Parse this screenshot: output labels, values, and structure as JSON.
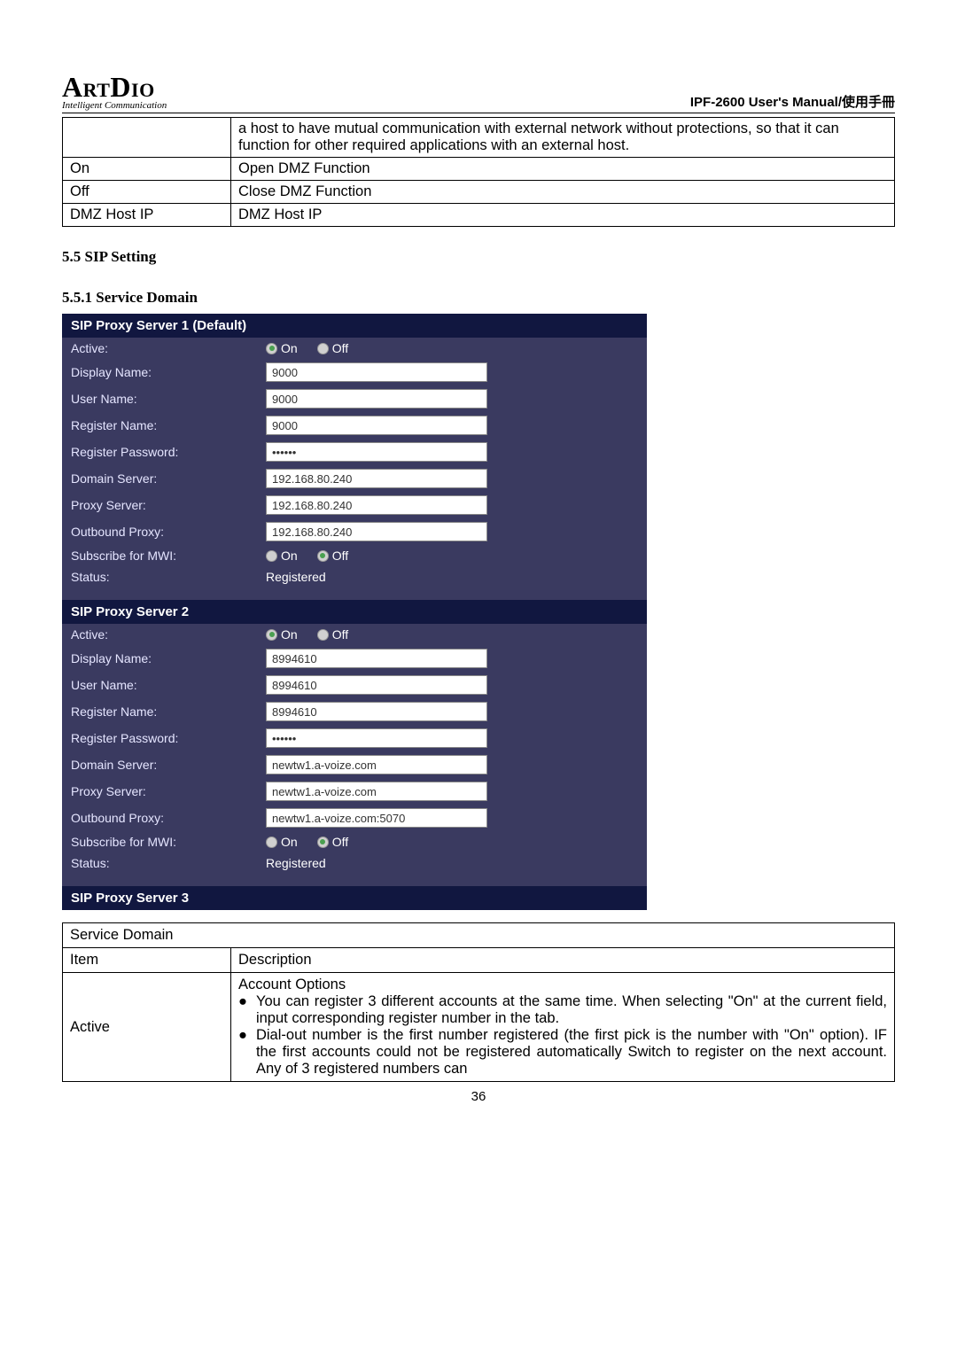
{
  "header": {
    "logo_main": "ArtDio",
    "logo_sub": "Intelligent Communication",
    "title": "IPF-2600 User's Manual/使用手冊"
  },
  "dmz_table": {
    "rows": [
      {
        "k": "",
        "v": "a host to have mutual communication with external network without protections, so that it can function for other required applications with an external host."
      },
      {
        "k": "On",
        "v": "Open DMZ Function"
      },
      {
        "k": "Off",
        "v": "Close DMZ Function"
      },
      {
        "k": "DMZ Host IP",
        "v": "DMZ Host IP"
      }
    ]
  },
  "sections": {
    "s55": "5.5 SIP Setting",
    "s551": "5.5.1 Service Domain"
  },
  "sip": {
    "labels": {
      "active": "Active:",
      "display_name": "Display Name:",
      "user_name": "User Name:",
      "register_name": "Register Name:",
      "register_password": "Register Password:",
      "domain_server": "Domain Server:",
      "proxy_server": "Proxy Server:",
      "outbound_proxy": "Outbound Proxy:",
      "subscribe_mwi": "Subscribe for MWI:",
      "status": "Status:",
      "on": "On",
      "off": "Off"
    },
    "server1": {
      "title": "SIP Proxy Server 1 (Default)",
      "active": "On",
      "display_name": "9000",
      "user_name": "9000",
      "register_name": "9000",
      "register_password": "••••••",
      "domain_server": "192.168.80.240",
      "proxy_server": "192.168.80.240",
      "outbound_proxy": "192.168.80.240",
      "subscribe_mwi": "Off",
      "status": "Registered"
    },
    "server2": {
      "title": "SIP Proxy Server 2",
      "active": "On",
      "display_name": "8994610",
      "user_name": "8994610",
      "register_name": "8994610",
      "register_password": "••••••",
      "domain_server": "newtw1.a-voize.com",
      "proxy_server": "newtw1.a-voize.com",
      "outbound_proxy": "newtw1.a-voize.com:5070",
      "subscribe_mwi": "Off",
      "status": "Registered"
    },
    "server3": {
      "title": "SIP Proxy Server 3"
    }
  },
  "service_domain_table": {
    "title": "Service Domain",
    "header_item": "Item",
    "header_desc": "Description",
    "active_label": "Active",
    "account_options": "Account Options",
    "bullets": [
      "You can register 3 different accounts at the same time. When selecting \"On\" at the current field, input corresponding register number in the tab.",
      "Dial-out number is the first number registered (the first pick is the number with \"On\" option). IF the first accounts could not be registered automatically Switch to register on the next account. Any of 3 registered numbers can"
    ]
  },
  "page_number": "36",
  "colors": {
    "panel_bg": "#3a3a60",
    "panel_header_bg": "#111740",
    "text_light": "#e5e5ff"
  }
}
